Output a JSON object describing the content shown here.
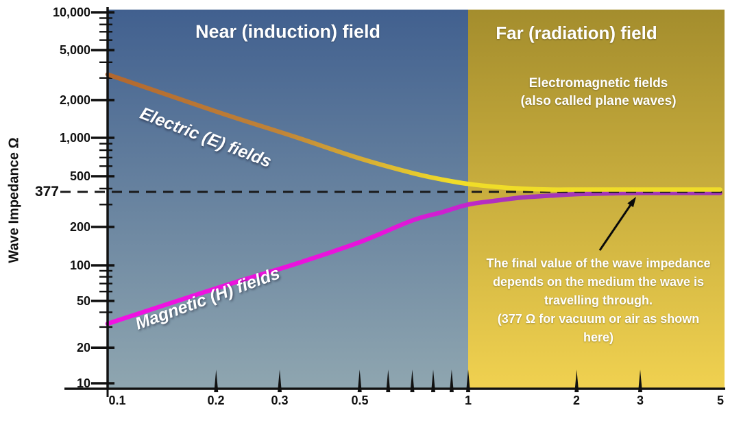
{
  "figure": {
    "y_axis_title": "Wave Impedance Ω",
    "near_region": {
      "label": "Near (induction) field",
      "color_top": "#41608f",
      "color_bottom": "#8fa6b0"
    },
    "far_region": {
      "label": "Far (radiation) field",
      "color_top": "#a48d2d",
      "color_bottom": "#f0d150"
    },
    "em_note": {
      "lines": [
        "Electromagnetic fields",
        "(also called plane waves)"
      ]
    },
    "annotation": {
      "lines": [
        "The final value of the wave impedance",
        "depends on the medium the wave is",
        "travelling through.",
        "(377 Ω for vacuum or air as shown",
        "here)"
      ]
    },
    "reference_label": "377"
  },
  "chart_data": {
    "type": "line",
    "title": "",
    "xlabel": "",
    "ylabel": "Wave Impedance Ω",
    "x_axis": {
      "scale": "log",
      "range": [
        0.1,
        5
      ],
      "tick_values": [
        0.1,
        0.2,
        0.3,
        0.5,
        1,
        2,
        3,
        5
      ],
      "tick_labels": [
        "0.1",
        "0.2",
        "0.3",
        "0.5",
        "1",
        "2",
        "3",
        "5"
      ],
      "minor_tick_values": [
        0.6,
        0.7,
        0.8,
        0.9
      ]
    },
    "y_axis": {
      "scale": "log",
      "range": [
        10,
        10000
      ],
      "tick_values": [
        10,
        20,
        50,
        100,
        200,
        500,
        1000,
        2000,
        5000,
        10000
      ],
      "tick_labels": [
        "10",
        "20",
        "50",
        "100",
        "200",
        "500",
        "1,000",
        "2,000",
        "5,000",
        "10,000"
      ],
      "minor_tick_values": [
        30,
        40,
        60,
        70,
        80,
        90,
        300,
        400,
        600,
        700,
        800,
        900,
        3000,
        4000,
        6000,
        7000,
        8000,
        9000
      ]
    },
    "reference_line": {
      "value": 377,
      "label": "377",
      "style": "dashed",
      "color": "#1a1a1a"
    },
    "region_boundary_x": 1,
    "x": [
      0.1,
      0.15,
      0.22,
      0.33,
      0.5,
      0.7,
      0.85,
      1.0,
      1.2,
      1.4,
      1.7,
      2.0,
      2.5,
      3.0,
      4.0,
      5.0
    ],
    "series": [
      {
        "name": "Electric (E) fields",
        "values": [
          3200,
          2150,
          1480,
          1020,
          690,
          530,
          470,
          435,
          412,
          400,
          390,
          383,
          380,
          378,
          377,
          377
        ],
        "gradient": [
          {
            "at": 0,
            "color": "#b2672f"
          },
          {
            "at": 0.28,
            "color": "#c08438"
          },
          {
            "at": 0.45,
            "color": "#ddb832"
          },
          {
            "at": 0.56,
            "color": "#f0dd28"
          },
          {
            "at": 1,
            "color": "#efdc29"
          }
        ]
      },
      {
        "name": "Magnetic (H) fields",
        "values": [
          32,
          48,
          70,
          102,
          152,
          225,
          262,
          300,
          322,
          340,
          352,
          362,
          367,
          372,
          375,
          376
        ],
        "gradient": [
          {
            "at": 0,
            "color": "#f012e2"
          },
          {
            "at": 0.45,
            "color": "#e714da"
          },
          {
            "at": 0.56,
            "color": "#c922cf"
          },
          {
            "at": 0.66,
            "color": "#a536b9"
          },
          {
            "at": 1,
            "color": "#a136b4"
          }
        ]
      }
    ]
  }
}
